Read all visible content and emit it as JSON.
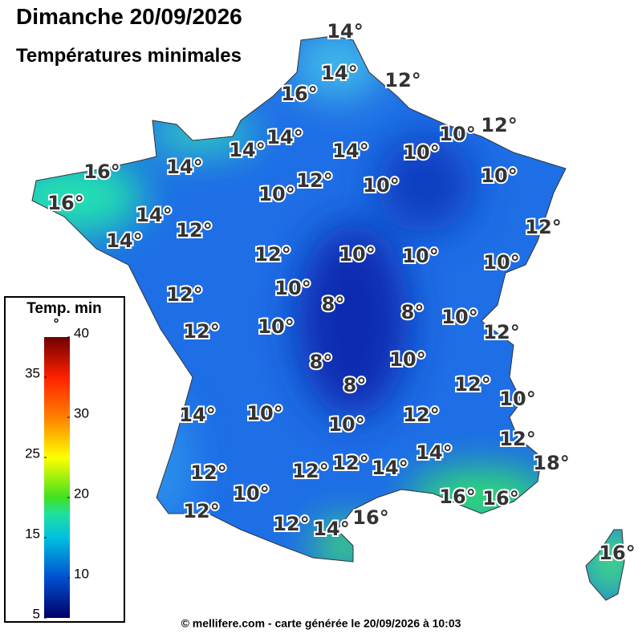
{
  "header": {
    "title": "Dimanche 20/09/2026",
    "subtitle": "Températures minimales"
  },
  "legend": {
    "title": "Temp. min",
    "unit": "°",
    "ticks": [
      5,
      10,
      15,
      20,
      25,
      30,
      35,
      40
    ]
  },
  "labels": [
    "14°",
    "14°",
    "12°",
    "16°",
    "12°",
    "10°",
    "14°",
    "14°",
    "14°",
    "10°",
    "16°",
    "14°",
    "12°",
    "10°",
    "10°",
    "10°",
    "16°",
    "14°",
    "12°",
    "12°",
    "14°",
    "12°",
    "10°",
    "10°",
    "10°",
    "10°",
    "12°",
    "8°",
    "8°",
    "10°",
    "10°",
    "12°",
    "12°",
    "8°",
    "10°",
    "8°",
    "12°",
    "10°",
    "14°",
    "10°",
    "12°",
    "10°",
    "12°",
    "14°",
    "12°",
    "14°",
    "12°",
    "18°",
    "12°",
    "10°",
    "16°",
    "16°",
    "12°",
    "16°",
    "12°",
    "14°",
    "16°"
  ],
  "footer": "© mellifere.com - carte générée le 20/09/2026 à 10:03"
}
